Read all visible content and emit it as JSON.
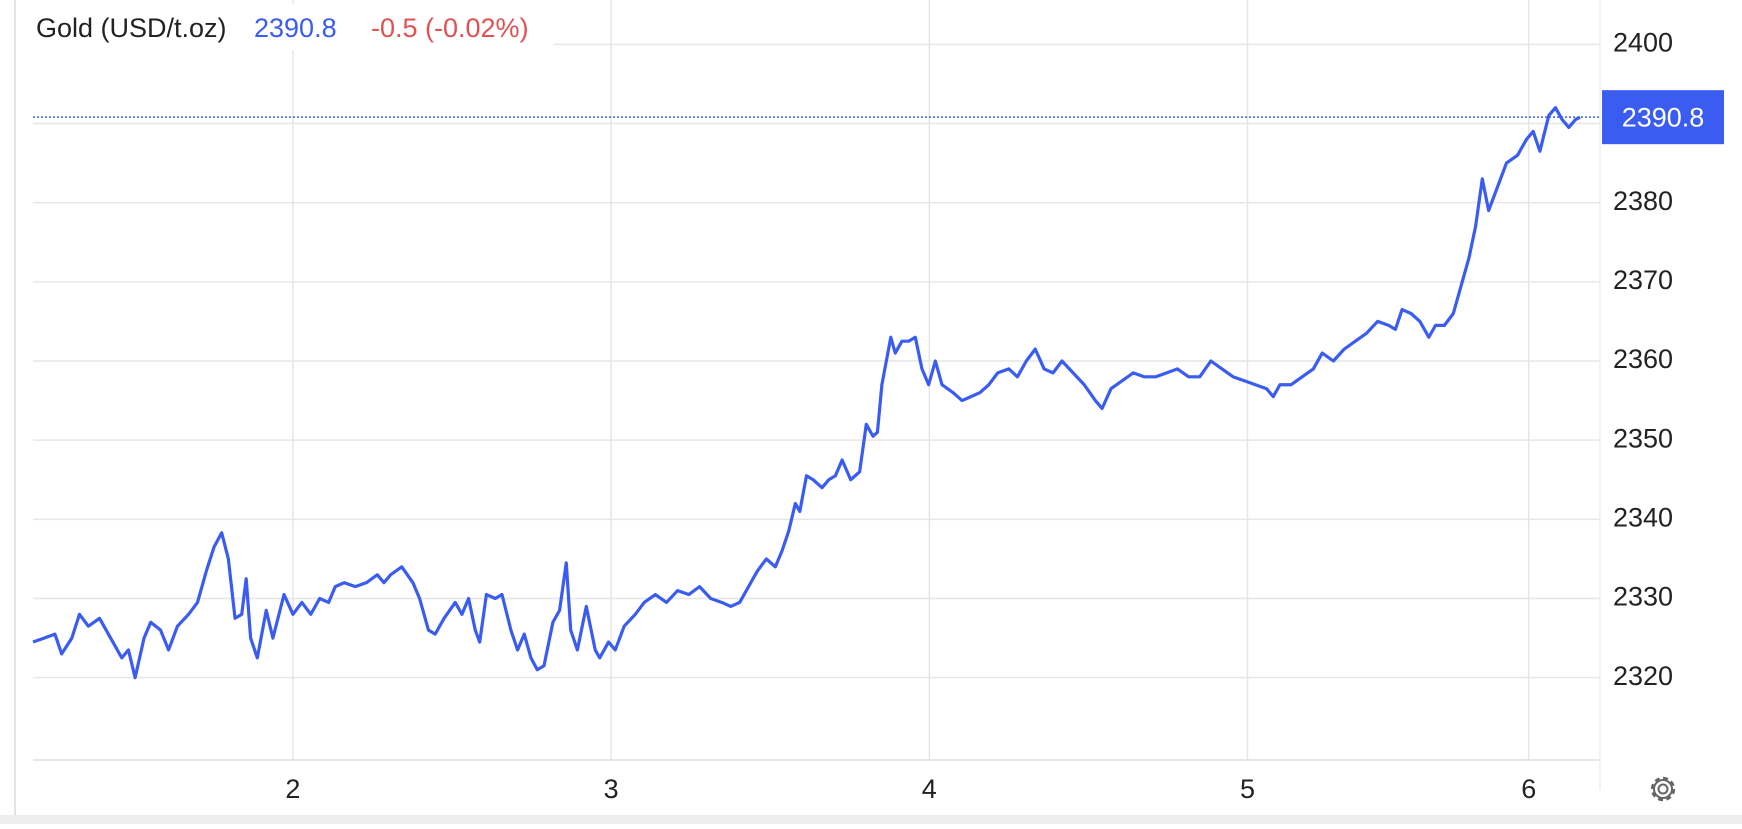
{
  "chart_data": {
    "type": "line",
    "title": "Gold (USD/t.oz)",
    "last_price": 2390.8,
    "change_label": "-0.5 (-0.02%)",
    "xlim": [
      1.183,
      6.108
    ],
    "ylim": [
      2309.6,
      2405.6
    ],
    "xticks": [
      2,
      3,
      4,
      5,
      {
        "value": 5.884,
        "label": "6"
      }
    ],
    "yticks": [
      2320,
      2330,
      2340,
      2350,
      2360,
      2370,
      2380,
      2390,
      2400
    ],
    "grid": true,
    "series": [
      {
        "name": "Gold (USD/t.oz)",
        "color": "#3a5cf0",
        "x": [
          1.183,
          1.218,
          1.252,
          1.273,
          1.305,
          1.329,
          1.357,
          1.392,
          1.427,
          1.462,
          1.483,
          1.504,
          1.532,
          1.553,
          1.584,
          1.609,
          1.637,
          1.672,
          1.7,
          1.728,
          1.752,
          1.776,
          1.797,
          1.818,
          1.839,
          1.853,
          1.867,
          1.888,
          1.916,
          1.937,
          1.972,
          2.0,
          2.028,
          2.056,
          2.084,
          2.112,
          2.133,
          2.161,
          2.196,
          2.231,
          2.265,
          2.286,
          2.307,
          2.342,
          2.377,
          2.398,
          2.426,
          2.447,
          2.475,
          2.51,
          2.531,
          2.552,
          2.573,
          2.587,
          2.608,
          2.636,
          2.657,
          2.685,
          2.706,
          2.727,
          2.748,
          2.768,
          2.789,
          2.817,
          2.838,
          2.859,
          2.873,
          2.894,
          2.922,
          2.95,
          2.964,
          2.992,
          3.013,
          3.041,
          3.076,
          3.104,
          3.139,
          3.174,
          3.209,
          3.244,
          3.278,
          3.313,
          3.348,
          3.376,
          3.404,
          3.432,
          3.46,
          3.488,
          3.516,
          3.537,
          3.558,
          3.579,
          3.593,
          3.614,
          3.635,
          3.663,
          3.684,
          3.705,
          3.726,
          3.753,
          3.781,
          3.802,
          3.823,
          3.837,
          3.851,
          3.865,
          3.879,
          3.893,
          3.914,
          3.935,
          3.956,
          3.977,
          3.998,
          4.019,
          4.04,
          4.075,
          4.103,
          4.131,
          4.159,
          4.187,
          4.215,
          4.25,
          4.277,
          4.305,
          4.333,
          4.361,
          4.389,
          4.417,
          4.452,
          4.487,
          4.522,
          4.543,
          4.571,
          4.606,
          4.641,
          4.676,
          4.711,
          4.746,
          4.78,
          4.815,
          4.85,
          4.885,
          4.92,
          4.955,
          4.99,
          5.025,
          5.06,
          5.081,
          5.102,
          5.137,
          5.172,
          5.207,
          5.235,
          5.27,
          5.304,
          5.339,
          5.374,
          5.409,
          5.444,
          5.465,
          5.486,
          5.514,
          5.542,
          5.57,
          5.591,
          5.619,
          5.647,
          5.675,
          5.696,
          5.717,
          5.738,
          5.758,
          5.786,
          5.814,
          5.849,
          5.877,
          5.898,
          5.919,
          5.947,
          5.968,
          5.989,
          6.01,
          6.031,
          6.045
        ],
        "values": [
          2324.5,
          2325,
          2325.5,
          2323,
          2325,
          2328,
          2326.5,
          2327.5,
          2325,
          2322.5,
          2323.5,
          2320,
          2325,
          2327,
          2326,
          2323.5,
          2326.5,
          2328,
          2329.5,
          2333.5,
          2336.5,
          2338.3,
          2335,
          2327.5,
          2328,
          2332.5,
          2325,
          2322.5,
          2328.5,
          2325,
          2330.5,
          2328,
          2329.5,
          2328,
          2330,
          2329.5,
          2331.5,
          2332,
          2331.5,
          2332,
          2333,
          2332,
          2333,
          2334,
          2332,
          2330,
          2326,
          2325.5,
          2327.5,
          2329.5,
          2328,
          2330,
          2326,
          2324.5,
          2330.5,
          2330,
          2330.5,
          2326,
          2323.5,
          2325.5,
          2322.5,
          2321,
          2321.5,
          2327,
          2328.5,
          2334.5,
          2326,
          2323.5,
          2329,
          2323.5,
          2322.5,
          2324.5,
          2323.5,
          2326.5,
          2328,
          2329.5,
          2330.5,
          2329.5,
          2331,
          2330.5,
          2331.5,
          2330,
          2329.5,
          2329,
          2329.5,
          2331.5,
          2333.5,
          2335,
          2334,
          2336,
          2338.5,
          2342,
          2341,
          2345.5,
          2345,
          2344,
          2345,
          2345.5,
          2347.5,
          2345,
          2346,
          2352,
          2350.5,
          2351,
          2357,
          2360,
          2363,
          2361,
          2362.5,
          2362.5,
          2363,
          2359,
          2357,
          2360,
          2357,
          2356,
          2355,
          2355.5,
          2356,
          2357,
          2358.5,
          2359,
          2358,
          2360,
          2361.5,
          2359,
          2358.5,
          2360,
          2358.5,
          2357,
          2355,
          2354,
          2356.5,
          2357.5,
          2358.5,
          2358,
          2358,
          2358.5,
          2359,
          2358,
          2358,
          2360,
          2359,
          2358,
          2357.5,
          2357,
          2356.5,
          2355.5,
          2357,
          2357,
          2358,
          2359,
          2361,
          2360,
          2361.5,
          2362.5,
          2363.5,
          2365,
          2364.5,
          2364,
          2366.5,
          2366,
          2365,
          2363,
          2364.5,
          2364.5,
          2366,
          2370,
          2373,
          2377,
          2383,
          2379,
          2382,
          2385,
          2386,
          2388,
          2389,
          2386.5,
          2391,
          2392,
          2390.5,
          2389.5,
          2390.5,
          2390.8
        ]
      }
    ]
  }
}
